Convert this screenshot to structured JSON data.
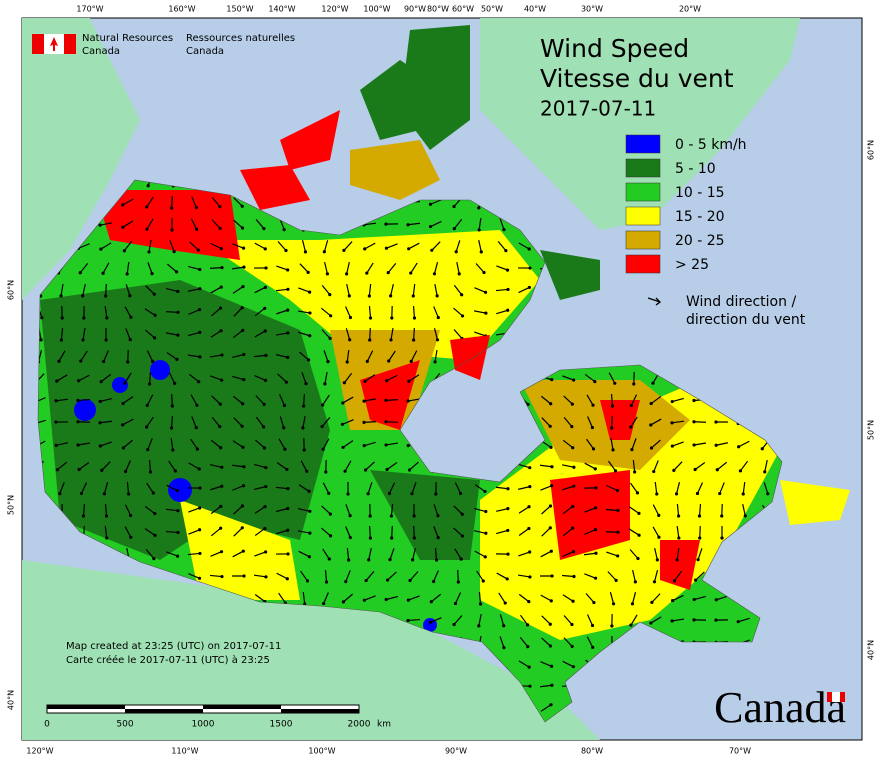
{
  "agency": {
    "en": [
      "Natural Resources",
      "Canada"
    ],
    "fr": [
      "Ressources naturelles",
      "Canada"
    ]
  },
  "title": [
    "Wind Speed",
    "Vitesse du vent"
  ],
  "date": "2017-07-11",
  "legend": {
    "items": [
      {
        "label": "0 - 5 km/h",
        "color": "#0000ff"
      },
      {
        "label": "5 - 10",
        "color": "#1a7a1a"
      },
      {
        "label": "10 - 15",
        "color": "#22cc22"
      },
      {
        "label": "15 - 20",
        "color": "#ffff00"
      },
      {
        "label": "20 - 25",
        "color": "#d4aa00"
      },
      {
        "label": "> 25",
        "color": "#ff0000"
      }
    ],
    "arrow_label": [
      "Wind direction /",
      "direction du vent"
    ]
  },
  "credit": [
    "Map created at 23:25 (UTC) on 2017-07-11",
    "Carte créée le 2017-07-11 (UTC) à 23:25"
  ],
  "scale_bar": {
    "ticks": [
      "0",
      "500",
      "1000",
      "1500",
      "2000"
    ],
    "unit": "km"
  },
  "graticule": {
    "top": [
      "170°W",
      "160°W",
      "150°W",
      "140°W",
      "120°W",
      "100°W",
      "90°W",
      "80°W",
      "60°W",
      "50°W",
      "40°W",
      "30°W",
      "20°W"
    ],
    "bottom": [
      "120°W",
      "110°W",
      "100°W",
      "90°W",
      "80°W",
      "70°W"
    ],
    "left": [
      "60°N",
      "50°N",
      "40°N"
    ],
    "right": [
      "60°N",
      "50°N",
      "40°N"
    ]
  },
  "wordmark": "Canada"
}
